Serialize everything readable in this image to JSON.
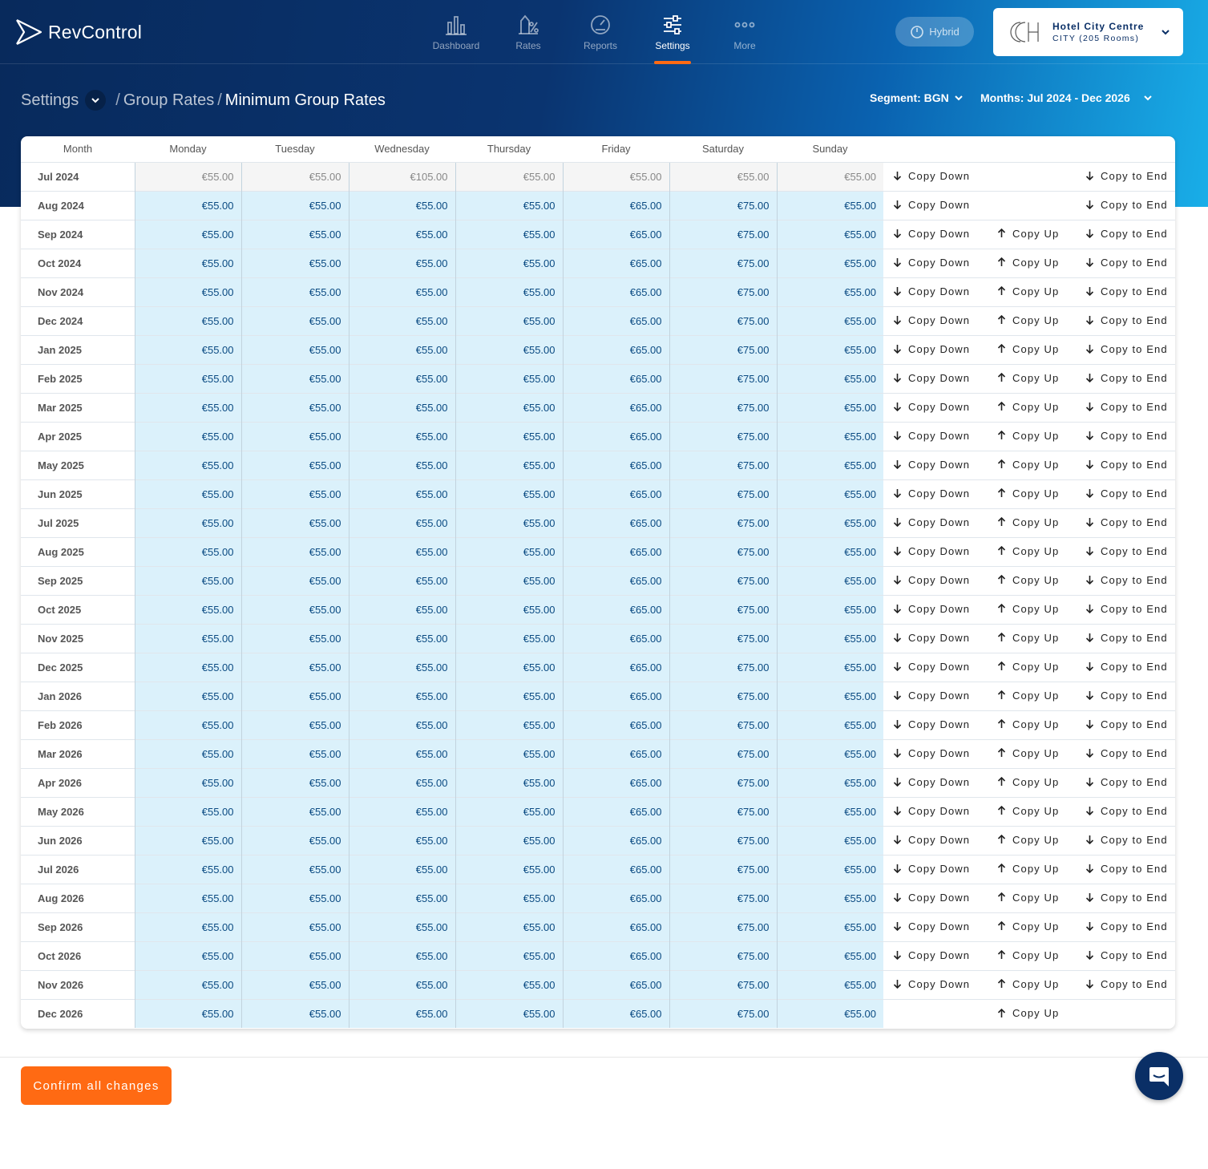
{
  "app": {
    "name": "RevControl"
  },
  "nav": {
    "items": [
      {
        "label": "Dashboard",
        "icon": "bar-chart-icon"
      },
      {
        "label": "Rates",
        "icon": "rates-icon"
      },
      {
        "label": "Reports",
        "icon": "gauge-icon"
      },
      {
        "label": "Settings",
        "icon": "sliders-icon",
        "active": true
      },
      {
        "label": "More",
        "icon": "more-dots-icon"
      }
    ]
  },
  "mode": {
    "label": "Hybrid"
  },
  "hotel": {
    "name": "Hotel City Centre",
    "sub": "CITY (205 Rooms)"
  },
  "breadcrumb": {
    "root": "Settings",
    "parent": "Group Rates",
    "current": "Minimum Group Rates"
  },
  "filters": {
    "segment": "Segment: BGN",
    "months": "Months: Jul 2024 - Dec 2026"
  },
  "table": {
    "headers": [
      "Month",
      "Monday",
      "Tuesday",
      "Wednesday",
      "Thursday",
      "Friday",
      "Saturday",
      "Sunday"
    ],
    "actions": {
      "down": "Copy Down",
      "up": "Copy Up",
      "end": "Copy to End"
    },
    "rows": [
      {
        "month": "Jul 2024",
        "rates": [
          "€55.00",
          "€55.00",
          "€105.00",
          "€55.00",
          "€55.00",
          "€55.00",
          "€55.00"
        ],
        "past": true,
        "down": true,
        "up": false,
        "end": true
      },
      {
        "month": "Aug 2024",
        "rates": [
          "€55.00",
          "€55.00",
          "€55.00",
          "€55.00",
          "€65.00",
          "€75.00",
          "€55.00"
        ],
        "down": true,
        "up": false,
        "end": true
      },
      {
        "month": "Sep 2024",
        "rates": [
          "€55.00",
          "€55.00",
          "€55.00",
          "€55.00",
          "€65.00",
          "€75.00",
          "€55.00"
        ],
        "down": true,
        "up": true,
        "end": true
      },
      {
        "month": "Oct 2024",
        "rates": [
          "€55.00",
          "€55.00",
          "€55.00",
          "€55.00",
          "€65.00",
          "€75.00",
          "€55.00"
        ],
        "down": true,
        "up": true,
        "end": true
      },
      {
        "month": "Nov 2024",
        "rates": [
          "€55.00",
          "€55.00",
          "€55.00",
          "€55.00",
          "€65.00",
          "€75.00",
          "€55.00"
        ],
        "down": true,
        "up": true,
        "end": true
      },
      {
        "month": "Dec 2024",
        "rates": [
          "€55.00",
          "€55.00",
          "€55.00",
          "€55.00",
          "€65.00",
          "€75.00",
          "€55.00"
        ],
        "down": true,
        "up": true,
        "end": true
      },
      {
        "month": "Jan 2025",
        "rates": [
          "€55.00",
          "€55.00",
          "€55.00",
          "€55.00",
          "€65.00",
          "€75.00",
          "€55.00"
        ],
        "down": true,
        "up": true,
        "end": true
      },
      {
        "month": "Feb 2025",
        "rates": [
          "€55.00",
          "€55.00",
          "€55.00",
          "€55.00",
          "€65.00",
          "€75.00",
          "€55.00"
        ],
        "down": true,
        "up": true,
        "end": true
      },
      {
        "month": "Mar 2025",
        "rates": [
          "€55.00",
          "€55.00",
          "€55.00",
          "€55.00",
          "€65.00",
          "€75.00",
          "€55.00"
        ],
        "down": true,
        "up": true,
        "end": true
      },
      {
        "month": "Apr 2025",
        "rates": [
          "€55.00",
          "€55.00",
          "€55.00",
          "€55.00",
          "€65.00",
          "€75.00",
          "€55.00"
        ],
        "down": true,
        "up": true,
        "end": true
      },
      {
        "month": "May 2025",
        "rates": [
          "€55.00",
          "€55.00",
          "€55.00",
          "€55.00",
          "€65.00",
          "€75.00",
          "€55.00"
        ],
        "down": true,
        "up": true,
        "end": true
      },
      {
        "month": "Jun 2025",
        "rates": [
          "€55.00",
          "€55.00",
          "€55.00",
          "€55.00",
          "€65.00",
          "€75.00",
          "€55.00"
        ],
        "down": true,
        "up": true,
        "end": true
      },
      {
        "month": "Jul 2025",
        "rates": [
          "€55.00",
          "€55.00",
          "€55.00",
          "€55.00",
          "€65.00",
          "€75.00",
          "€55.00"
        ],
        "down": true,
        "up": true,
        "end": true
      },
      {
        "month": "Aug 2025",
        "rates": [
          "€55.00",
          "€55.00",
          "€55.00",
          "€55.00",
          "€65.00",
          "€75.00",
          "€55.00"
        ],
        "down": true,
        "up": true,
        "end": true
      },
      {
        "month": "Sep 2025",
        "rates": [
          "€55.00",
          "€55.00",
          "€55.00",
          "€55.00",
          "€65.00",
          "€75.00",
          "€55.00"
        ],
        "down": true,
        "up": true,
        "end": true
      },
      {
        "month": "Oct 2025",
        "rates": [
          "€55.00",
          "€55.00",
          "€55.00",
          "€55.00",
          "€65.00",
          "€75.00",
          "€55.00"
        ],
        "down": true,
        "up": true,
        "end": true
      },
      {
        "month": "Nov 2025",
        "rates": [
          "€55.00",
          "€55.00",
          "€55.00",
          "€55.00",
          "€65.00",
          "€75.00",
          "€55.00"
        ],
        "down": true,
        "up": true,
        "end": true
      },
      {
        "month": "Dec 2025",
        "rates": [
          "€55.00",
          "€55.00",
          "€55.00",
          "€55.00",
          "€65.00",
          "€75.00",
          "€55.00"
        ],
        "down": true,
        "up": true,
        "end": true
      },
      {
        "month": "Jan 2026",
        "rates": [
          "€55.00",
          "€55.00",
          "€55.00",
          "€55.00",
          "€65.00",
          "€75.00",
          "€55.00"
        ],
        "down": true,
        "up": true,
        "end": true
      },
      {
        "month": "Feb 2026",
        "rates": [
          "€55.00",
          "€55.00",
          "€55.00",
          "€55.00",
          "€65.00",
          "€75.00",
          "€55.00"
        ],
        "down": true,
        "up": true,
        "end": true
      },
      {
        "month": "Mar 2026",
        "rates": [
          "€55.00",
          "€55.00",
          "€55.00",
          "€55.00",
          "€65.00",
          "€75.00",
          "€55.00"
        ],
        "down": true,
        "up": true,
        "end": true
      },
      {
        "month": "Apr 2026",
        "rates": [
          "€55.00",
          "€55.00",
          "€55.00",
          "€55.00",
          "€65.00",
          "€75.00",
          "€55.00"
        ],
        "down": true,
        "up": true,
        "end": true
      },
      {
        "month": "May 2026",
        "rates": [
          "€55.00",
          "€55.00",
          "€55.00",
          "€55.00",
          "€65.00",
          "€75.00",
          "€55.00"
        ],
        "down": true,
        "up": true,
        "end": true
      },
      {
        "month": "Jun 2026",
        "rates": [
          "€55.00",
          "€55.00",
          "€55.00",
          "€55.00",
          "€65.00",
          "€75.00",
          "€55.00"
        ],
        "down": true,
        "up": true,
        "end": true
      },
      {
        "month": "Jul 2026",
        "rates": [
          "€55.00",
          "€55.00",
          "€55.00",
          "€55.00",
          "€65.00",
          "€75.00",
          "€55.00"
        ],
        "down": true,
        "up": true,
        "end": true
      },
      {
        "month": "Aug 2026",
        "rates": [
          "€55.00",
          "€55.00",
          "€55.00",
          "€55.00",
          "€65.00",
          "€75.00",
          "€55.00"
        ],
        "down": true,
        "up": true,
        "end": true
      },
      {
        "month": "Sep 2026",
        "rates": [
          "€55.00",
          "€55.00",
          "€55.00",
          "€55.00",
          "€65.00",
          "€75.00",
          "€55.00"
        ],
        "down": true,
        "up": true,
        "end": true
      },
      {
        "month": "Oct 2026",
        "rates": [
          "€55.00",
          "€55.00",
          "€55.00",
          "€55.00",
          "€65.00",
          "€75.00",
          "€55.00"
        ],
        "down": true,
        "up": true,
        "end": true
      },
      {
        "month": "Nov 2026",
        "rates": [
          "€55.00",
          "€55.00",
          "€55.00",
          "€55.00",
          "€65.00",
          "€75.00",
          "€55.00"
        ],
        "down": true,
        "up": true,
        "end": true
      },
      {
        "month": "Dec 2026",
        "rates": [
          "€55.00",
          "€55.00",
          "€55.00",
          "€55.00",
          "€65.00",
          "€75.00",
          "€55.00"
        ],
        "down": false,
        "up": true,
        "end": false
      }
    ]
  },
  "footer": {
    "confirm_label": "Confirm all changes"
  },
  "chat": {
    "icon": "chat-bubble-icon"
  },
  "colors": {
    "accent": "#ff6a13",
    "navy": "#0a2f66",
    "rate_cell": "#dbf1fb",
    "rate_text": "#0a4a82"
  }
}
